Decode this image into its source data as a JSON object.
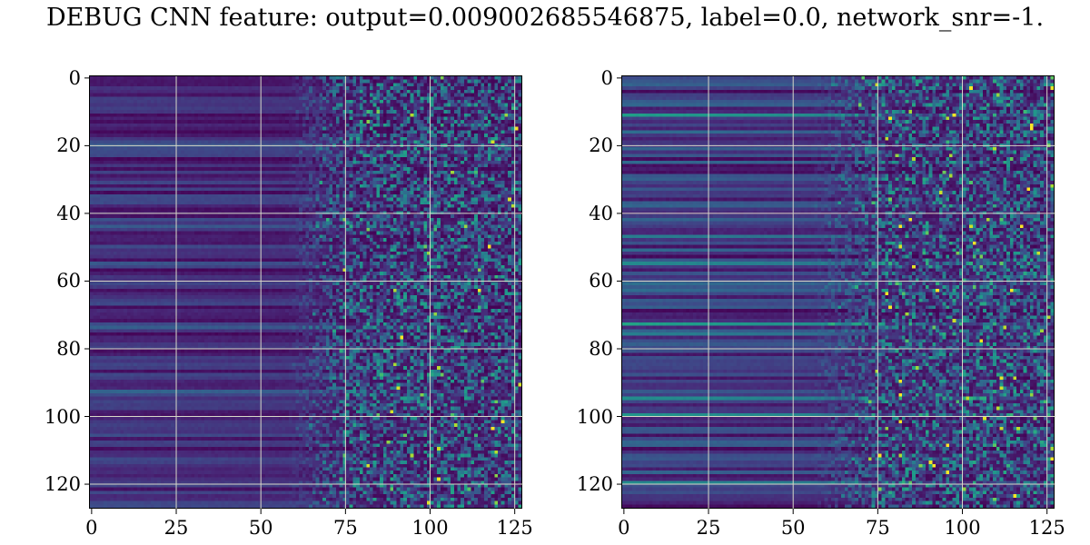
{
  "title": "DEBUG CNN feature: output=0.009002685546875, label=0.0, network_snr=-1.",
  "chart_data": [
    {
      "type": "heatmap",
      "colormap": "viridis",
      "rows": 128,
      "cols": 128,
      "xlim": [
        0,
        128
      ],
      "ylim": [
        128,
        0
      ],
      "x_ticks": [
        "0",
        "25",
        "50",
        "75",
        "100",
        "125"
      ],
      "y_ticks": [
        "0",
        "20",
        "40",
        "60",
        "80",
        "100",
        "120"
      ],
      "grid": true,
      "pattern": "horizontal bands for columns 0-60, noisy speckle for columns 75-128"
    },
    {
      "type": "heatmap",
      "colormap": "viridis",
      "rows": 128,
      "cols": 128,
      "xlim": [
        0,
        128
      ],
      "ylim": [
        128,
        0
      ],
      "x_ticks": [
        "0",
        "25",
        "50",
        "75",
        "100",
        "125"
      ],
      "y_ticks": [
        "0",
        "20",
        "40",
        "60",
        "80",
        "100",
        "120"
      ],
      "grid": true,
      "pattern": "brighter horizontal bands for columns 0-60, noisy speckle for columns 70-128"
    }
  ]
}
